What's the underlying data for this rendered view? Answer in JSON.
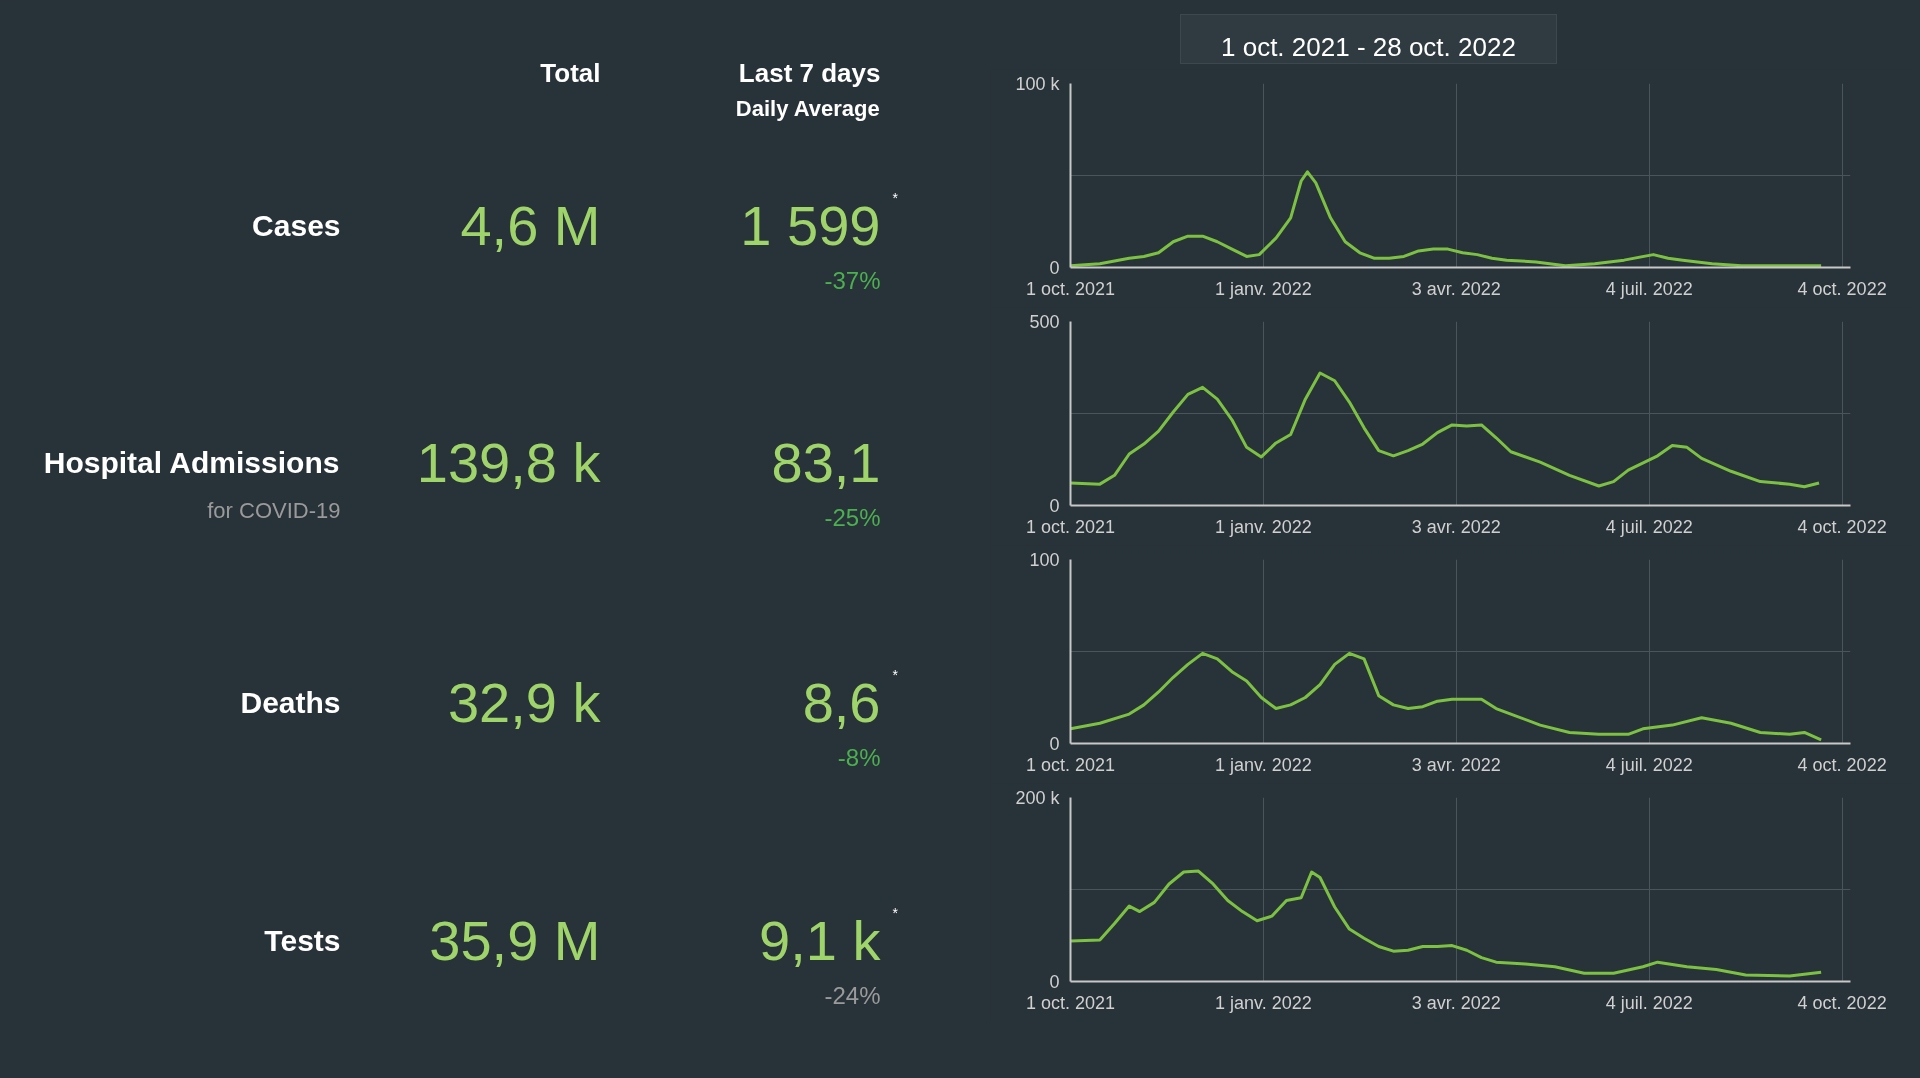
{
  "chart_data": [
    {
      "type": "other",
      "annotations": [
        "Total",
        "Last 7 days",
        "Daily Average",
        "1 oct. 2021 - 28 oct. 2022",
        "Cases",
        "4,6 M",
        "1 599",
        "*",
        "-37%",
        "Hospital Admissions",
        "for COVID-19",
        "139,8 k",
        "83,1",
        "-25%",
        "Deaths",
        "32,9 k",
        "8,6",
        "*",
        "-8%",
        "Tests",
        "35,9 M",
        "9,1 k",
        "*",
        "-24%"
      ]
    },
    {
      "type": "line",
      "grid": true,
      "xlim": [
        "2021-10-01",
        "2022-10-08"
      ],
      "xticks": [
        {
          "value": "2021-10-01",
          "label": "1 oct. 2021"
        },
        {
          "value": "2022-01-01",
          "label": "1 janv. 2022"
        },
        {
          "value": "2022-04-03",
          "label": "3 avr. 2022"
        },
        {
          "value": "2022-07-04",
          "label": "4 juil. 2022"
        },
        {
          "value": "2022-10-04",
          "label": "4 oct. 2022"
        }
      ],
      "ylim": [
        0,
        100000
      ],
      "yticks": [
        0,
        {
          "value": 50000,
          "label": null
        },
        {
          "value": 100000,
          "label": "100 k"
        }
      ],
      "x": [
        "2021-10-01",
        "2021-10-15",
        "2021-10-29",
        "2021-11-05",
        "2021-11-12",
        "2021-11-19",
        "2021-11-26",
        "2021-12-03",
        "2021-12-10",
        "2021-12-17",
        "2021-12-24",
        "2021-12-30",
        "2022-01-07",
        "2022-01-14",
        "2022-01-19",
        "2022-01-22",
        "2022-01-26",
        "2022-02-02",
        "2022-02-09",
        "2022-02-16",
        "2022-02-23",
        "2022-03-02",
        "2022-03-09",
        "2022-03-16",
        "2022-03-23",
        "2022-03-30",
        "2022-04-06",
        "2022-04-13",
        "2022-04-20",
        "2022-04-27",
        "2022-05-11",
        "2022-05-25",
        "2022-06-08",
        "2022-06-22",
        "2022-07-06",
        "2022-07-13",
        "2022-07-20",
        "2022-08-03",
        "2022-08-17",
        "2022-09-07",
        "2022-09-24"
      ],
      "series": [
        {
          "color": "#7cc142",
          "values": [
            1000,
            2000,
            5000,
            6000,
            8000,
            14000,
            17000,
            17000,
            14000,
            10000,
            6000,
            7000,
            16000,
            27000,
            47000,
            52000,
            46000,
            27000,
            14000,
            8000,
            5000,
            5000,
            6000,
            9000,
            10000,
            10000,
            8000,
            7000,
            5000,
            4000,
            3000,
            1000,
            2000,
            4000,
            7000,
            5000,
            4000,
            2000,
            1000,
            1000,
            1000
          ]
        }
      ]
    },
    {
      "type": "line",
      "grid": true,
      "xlim": [
        "2021-10-01",
        "2022-10-08"
      ],
      "xticks": [
        {
          "value": "2021-10-01",
          "label": "1 oct. 2021"
        },
        {
          "value": "2022-01-01",
          "label": "1 janv. 2022"
        },
        {
          "value": "2022-04-03",
          "label": "3 avr. 2022"
        },
        {
          "value": "2022-07-04",
          "label": "4 juil. 2022"
        },
        {
          "value": "2022-10-04",
          "label": "4 oct. 2022"
        }
      ],
      "ylim": [
        0,
        500
      ],
      "yticks": [
        0,
        {
          "value": 250,
          "label": null
        },
        500
      ],
      "x": [
        "2021-10-01",
        "2021-10-15",
        "2021-10-22",
        "2021-10-29",
        "2021-11-05",
        "2021-11-12",
        "2021-11-19",
        "2021-11-26",
        "2021-12-03",
        "2021-12-10",
        "2021-12-17",
        "2021-12-24",
        "2021-12-31",
        "2022-01-07",
        "2022-01-14",
        "2022-01-21",
        "2022-01-28",
        "2022-02-04",
        "2022-02-11",
        "2022-02-18",
        "2022-02-25",
        "2022-03-04",
        "2022-03-11",
        "2022-03-18",
        "2022-03-25",
        "2022-04-01",
        "2022-04-08",
        "2022-04-15",
        "2022-04-22",
        "2022-04-29",
        "2022-05-13",
        "2022-05-27",
        "2022-06-10",
        "2022-06-17",
        "2022-06-24",
        "2022-07-08",
        "2022-07-15",
        "2022-07-22",
        "2022-07-29",
        "2022-08-12",
        "2022-08-26",
        "2022-09-09",
        "2022-09-16",
        "2022-09-23"
      ],
      "series": [
        {
          "color": "#7cc142",
          "values": [
            61,
            58,
            82,
            140,
            167,
            202,
            254,
            302,
            321,
            289,
            233,
            158,
            132,
            170,
            193,
            289,
            360,
            339,
            281,
            211,
            149,
            135,
            149,
            167,
            198,
            219,
            216,
            219,
            184,
            146,
            118,
            82,
            53,
            65,
            96,
            135,
            163,
            158,
            128,
            93,
            65,
            58,
            51,
            61
          ]
        }
      ]
    },
    {
      "type": "line",
      "grid": true,
      "xlim": [
        "2021-10-01",
        "2022-10-08"
      ],
      "xticks": [
        {
          "value": "2021-10-01",
          "label": "1 oct. 2021"
        },
        {
          "value": "2022-01-01",
          "label": "1 janv. 2022"
        },
        {
          "value": "2022-04-03",
          "label": "3 avr. 2022"
        },
        {
          "value": "2022-07-04",
          "label": "4 juil. 2022"
        },
        {
          "value": "2022-10-04",
          "label": "4 oct. 2022"
        }
      ],
      "ylim": [
        0,
        100
      ],
      "yticks": [
        0,
        {
          "value": 50,
          "label": null
        },
        100
      ],
      "x": [
        "2021-10-01",
        "2021-10-15",
        "2021-10-29",
        "2021-11-05",
        "2021-11-12",
        "2021-11-19",
        "2021-11-26",
        "2021-12-03",
        "2021-12-10",
        "2021-12-17",
        "2021-12-24",
        "2021-12-31",
        "2022-01-07",
        "2022-01-14",
        "2022-01-21",
        "2022-01-28",
        "2022-02-04",
        "2022-02-11",
        "2022-02-18",
        "2022-02-25",
        "2022-03-04",
        "2022-03-11",
        "2022-03-18",
        "2022-03-25",
        "2022-04-01",
        "2022-04-08",
        "2022-04-15",
        "2022-04-22",
        "2022-04-29",
        "2022-05-13",
        "2022-05-27",
        "2022-06-10",
        "2022-06-24",
        "2022-07-01",
        "2022-07-15",
        "2022-07-29",
        "2022-08-12",
        "2022-08-26",
        "2022-09-09",
        "2022-09-16",
        "2022-09-24"
      ],
      "series": [
        {
          "color": "#7cc142",
          "values": [
            8,
            11,
            16,
            21,
            28,
            36,
            43,
            49,
            46,
            39,
            34,
            25,
            19,
            21,
            25,
            32,
            43,
            49,
            46,
            26,
            21,
            19,
            20,
            23,
            24,
            24,
            24,
            19,
            16,
            10,
            6,
            5,
            5,
            8,
            10,
            14,
            11,
            6,
            5,
            6,
            2
          ]
        }
      ]
    },
    {
      "type": "line",
      "grid": true,
      "xlim": [
        "2021-10-01",
        "2022-10-08"
      ],
      "xticks": [
        {
          "value": "2021-10-01",
          "label": "1 oct. 2021"
        },
        {
          "value": "2022-01-01",
          "label": "1 janv. 2022"
        },
        {
          "value": "2022-04-03",
          "label": "3 avr. 2022"
        },
        {
          "value": "2022-07-04",
          "label": "4 juil. 2022"
        },
        {
          "value": "2022-10-04",
          "label": "4 oct. 2022"
        }
      ],
      "ylim": [
        0,
        200000
      ],
      "yticks": [
        0,
        {
          "value": 100000,
          "label": null
        },
        {
          "value": 200000,
          "label": "200 k"
        }
      ],
      "x": [
        "2021-10-01",
        "2021-10-15",
        "2021-10-22",
        "2021-10-29",
        "2021-11-03",
        "2021-11-10",
        "2021-11-17",
        "2021-11-24",
        "2021-12-01",
        "2021-12-08",
        "2021-12-15",
        "2021-12-22",
        "2021-12-29",
        "2022-01-05",
        "2022-01-12",
        "2022-01-19",
        "2022-01-24",
        "2022-01-28",
        "2022-02-04",
        "2022-02-11",
        "2022-02-18",
        "2022-02-25",
        "2022-03-04",
        "2022-03-11",
        "2022-03-18",
        "2022-03-25",
        "2022-04-01",
        "2022-04-08",
        "2022-04-15",
        "2022-04-22",
        "2022-05-06",
        "2022-05-20",
        "2022-06-03",
        "2022-06-17",
        "2022-07-01",
        "2022-07-08",
        "2022-07-22",
        "2022-08-05",
        "2022-08-19",
        "2022-09-09",
        "2022-09-24"
      ],
      "series": [
        {
          "color": "#7cc142",
          "values": [
            44000,
            45000,
            63000,
            82000,
            76000,
            86000,
            106000,
            119000,
            120000,
            106000,
            88000,
            76000,
            66000,
            71000,
            88000,
            91000,
            119000,
            113000,
            81000,
            57000,
            47000,
            38000,
            33000,
            34000,
            38000,
            38000,
            39000,
            34000,
            26000,
            21000,
            19000,
            16000,
            9000,
            9000,
            16000,
            21000,
            16000,
            13000,
            7000,
            6000,
            10000
          ]
        }
      ]
    }
  ]
}
